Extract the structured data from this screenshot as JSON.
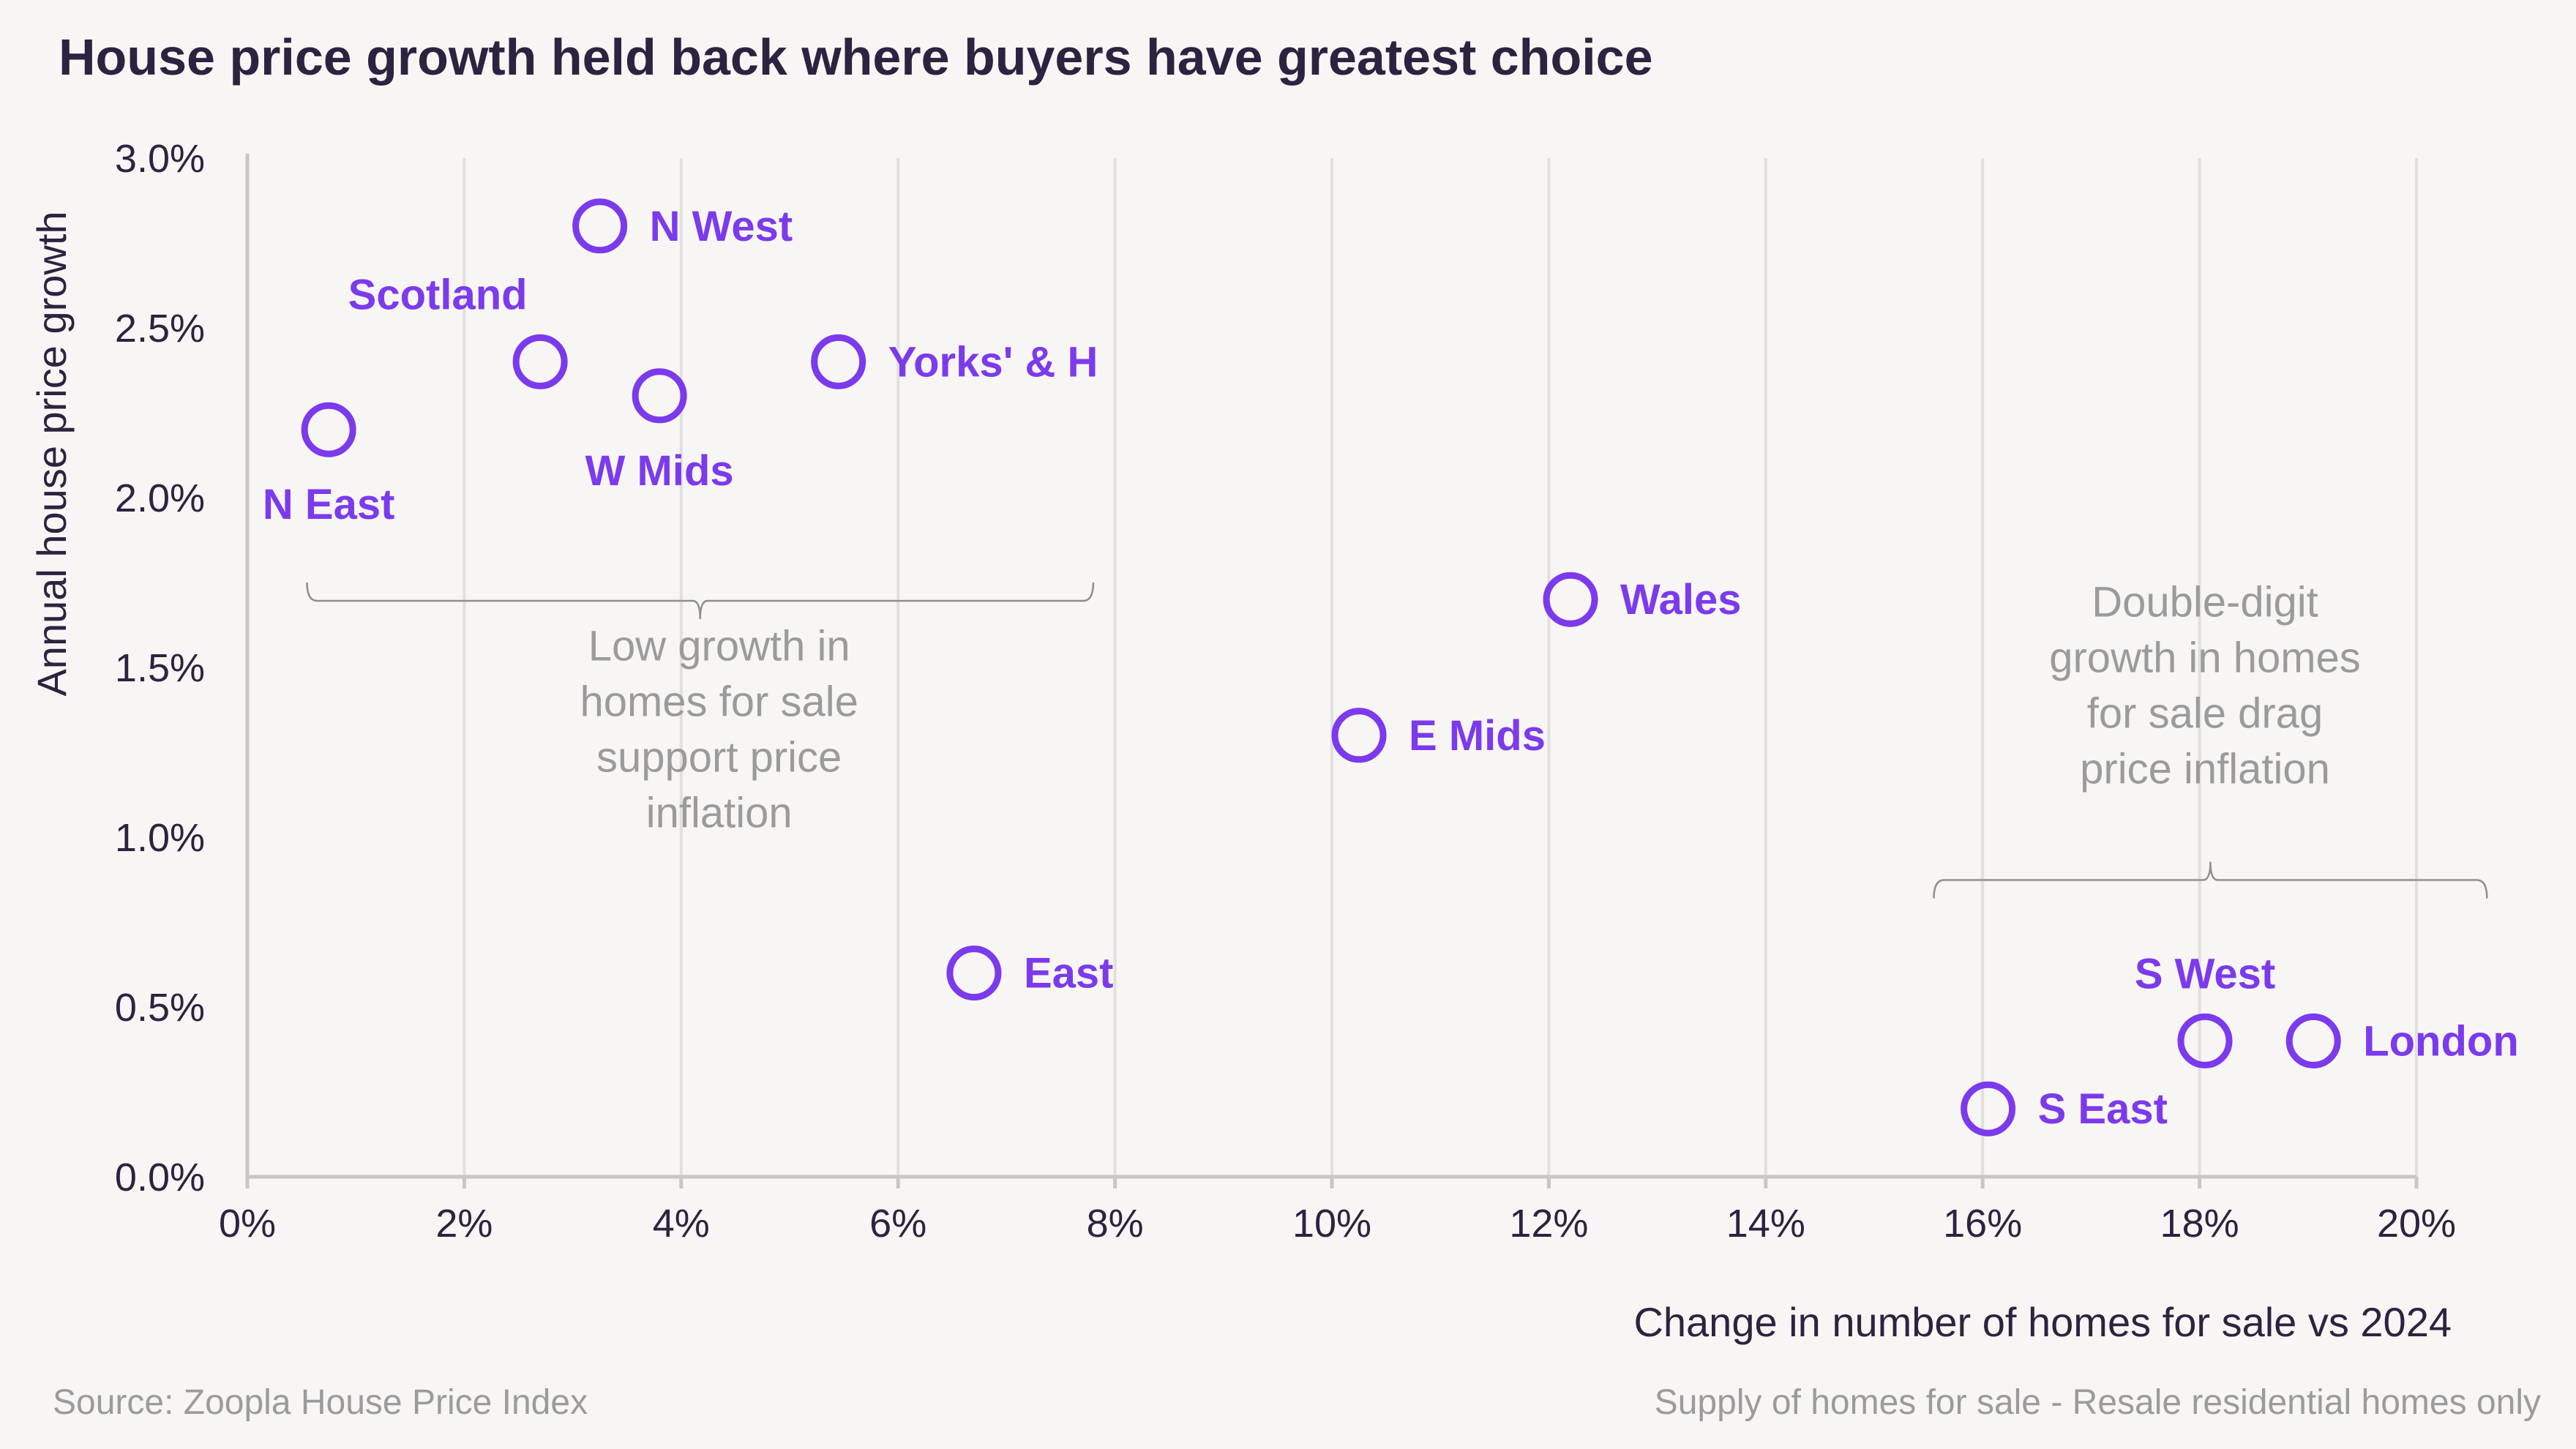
{
  "chart_data": {
    "type": "scatter",
    "title": "House price growth held back where buyers have greatest choice",
    "xlabel": "Change in number of homes for sale vs 2024",
    "ylabel": "Annual house price growth",
    "xlim": [
      0,
      20
    ],
    "ylim": [
      0,
      3
    ],
    "x_ticks": [
      {
        "v": 0,
        "label": "0%"
      },
      {
        "v": 2,
        "label": "2%"
      },
      {
        "v": 4,
        "label": "4%"
      },
      {
        "v": 6,
        "label": "6%"
      },
      {
        "v": 8,
        "label": "8%"
      },
      {
        "v": 10,
        "label": "10%"
      },
      {
        "v": 12,
        "label": "12%"
      },
      {
        "v": 14,
        "label": "14%"
      },
      {
        "v": 16,
        "label": "16%"
      },
      {
        "v": 18,
        "label": "18%"
      },
      {
        "v": 20,
        "label": "20%"
      }
    ],
    "y_ticks": [
      {
        "v": 0,
        "label": "0.0%"
      },
      {
        "v": 0.5,
        "label": "0.5%"
      },
      {
        "v": 1,
        "label": "1.0%"
      },
      {
        "v": 1.5,
        "label": "1.5%"
      },
      {
        "v": 2,
        "label": "2.0%"
      },
      {
        "v": 2.5,
        "label": "2.5%"
      },
      {
        "v": 3,
        "label": "3.0%"
      }
    ],
    "points": [
      {
        "name": "N East",
        "x": 0.75,
        "y": 2.2,
        "label_pos": "below"
      },
      {
        "name": "Scotland",
        "x": 2.7,
        "y": 2.4,
        "label_pos": "above-left"
      },
      {
        "name": "N West",
        "x": 3.25,
        "y": 2.8,
        "label_pos": "right"
      },
      {
        "name": "W Mids",
        "x": 3.8,
        "y": 2.3,
        "label_pos": "below"
      },
      {
        "name": "Yorks' & H",
        "x": 5.45,
        "y": 2.4,
        "label_pos": "right"
      },
      {
        "name": "East",
        "x": 6.7,
        "y": 0.6,
        "label_pos": "right"
      },
      {
        "name": "E Mids",
        "x": 10.25,
        "y": 1.3,
        "label_pos": "right"
      },
      {
        "name": "Wales",
        "x": 12.2,
        "y": 1.7,
        "label_pos": "right"
      },
      {
        "name": "S East",
        "x": 16.05,
        "y": 0.2,
        "label_pos": "right"
      },
      {
        "name": "S West",
        "x": 18.05,
        "y": 0.4,
        "label_pos": "above"
      },
      {
        "name": "London",
        "x": 19.05,
        "y": 0.4,
        "label_pos": "right"
      }
    ],
    "annotations": [
      {
        "name": "low-growth",
        "lines": [
          "Low growth in",
          "homes for sale",
          "support price",
          "inflation"
        ],
        "x": 4.35,
        "y": 1.52,
        "brace_x": [
          0.55,
          7.8
        ],
        "brace_y": 1.75,
        "brace_dir": "down"
      },
      {
        "name": "double-digit",
        "lines": [
          "Double-digit",
          "growth in homes",
          "for sale drag",
          "price inflation"
        ],
        "x": 18.05,
        "y": 1.65,
        "brace_x": [
          15.55,
          20.65
        ],
        "brace_y": 0.82,
        "brace_dir": "up"
      }
    ],
    "color": "#7c3aed"
  },
  "footer": {
    "source": "Source: Zoopla House Price Index",
    "note": "Supply of homes for sale - Resale residential homes only"
  }
}
